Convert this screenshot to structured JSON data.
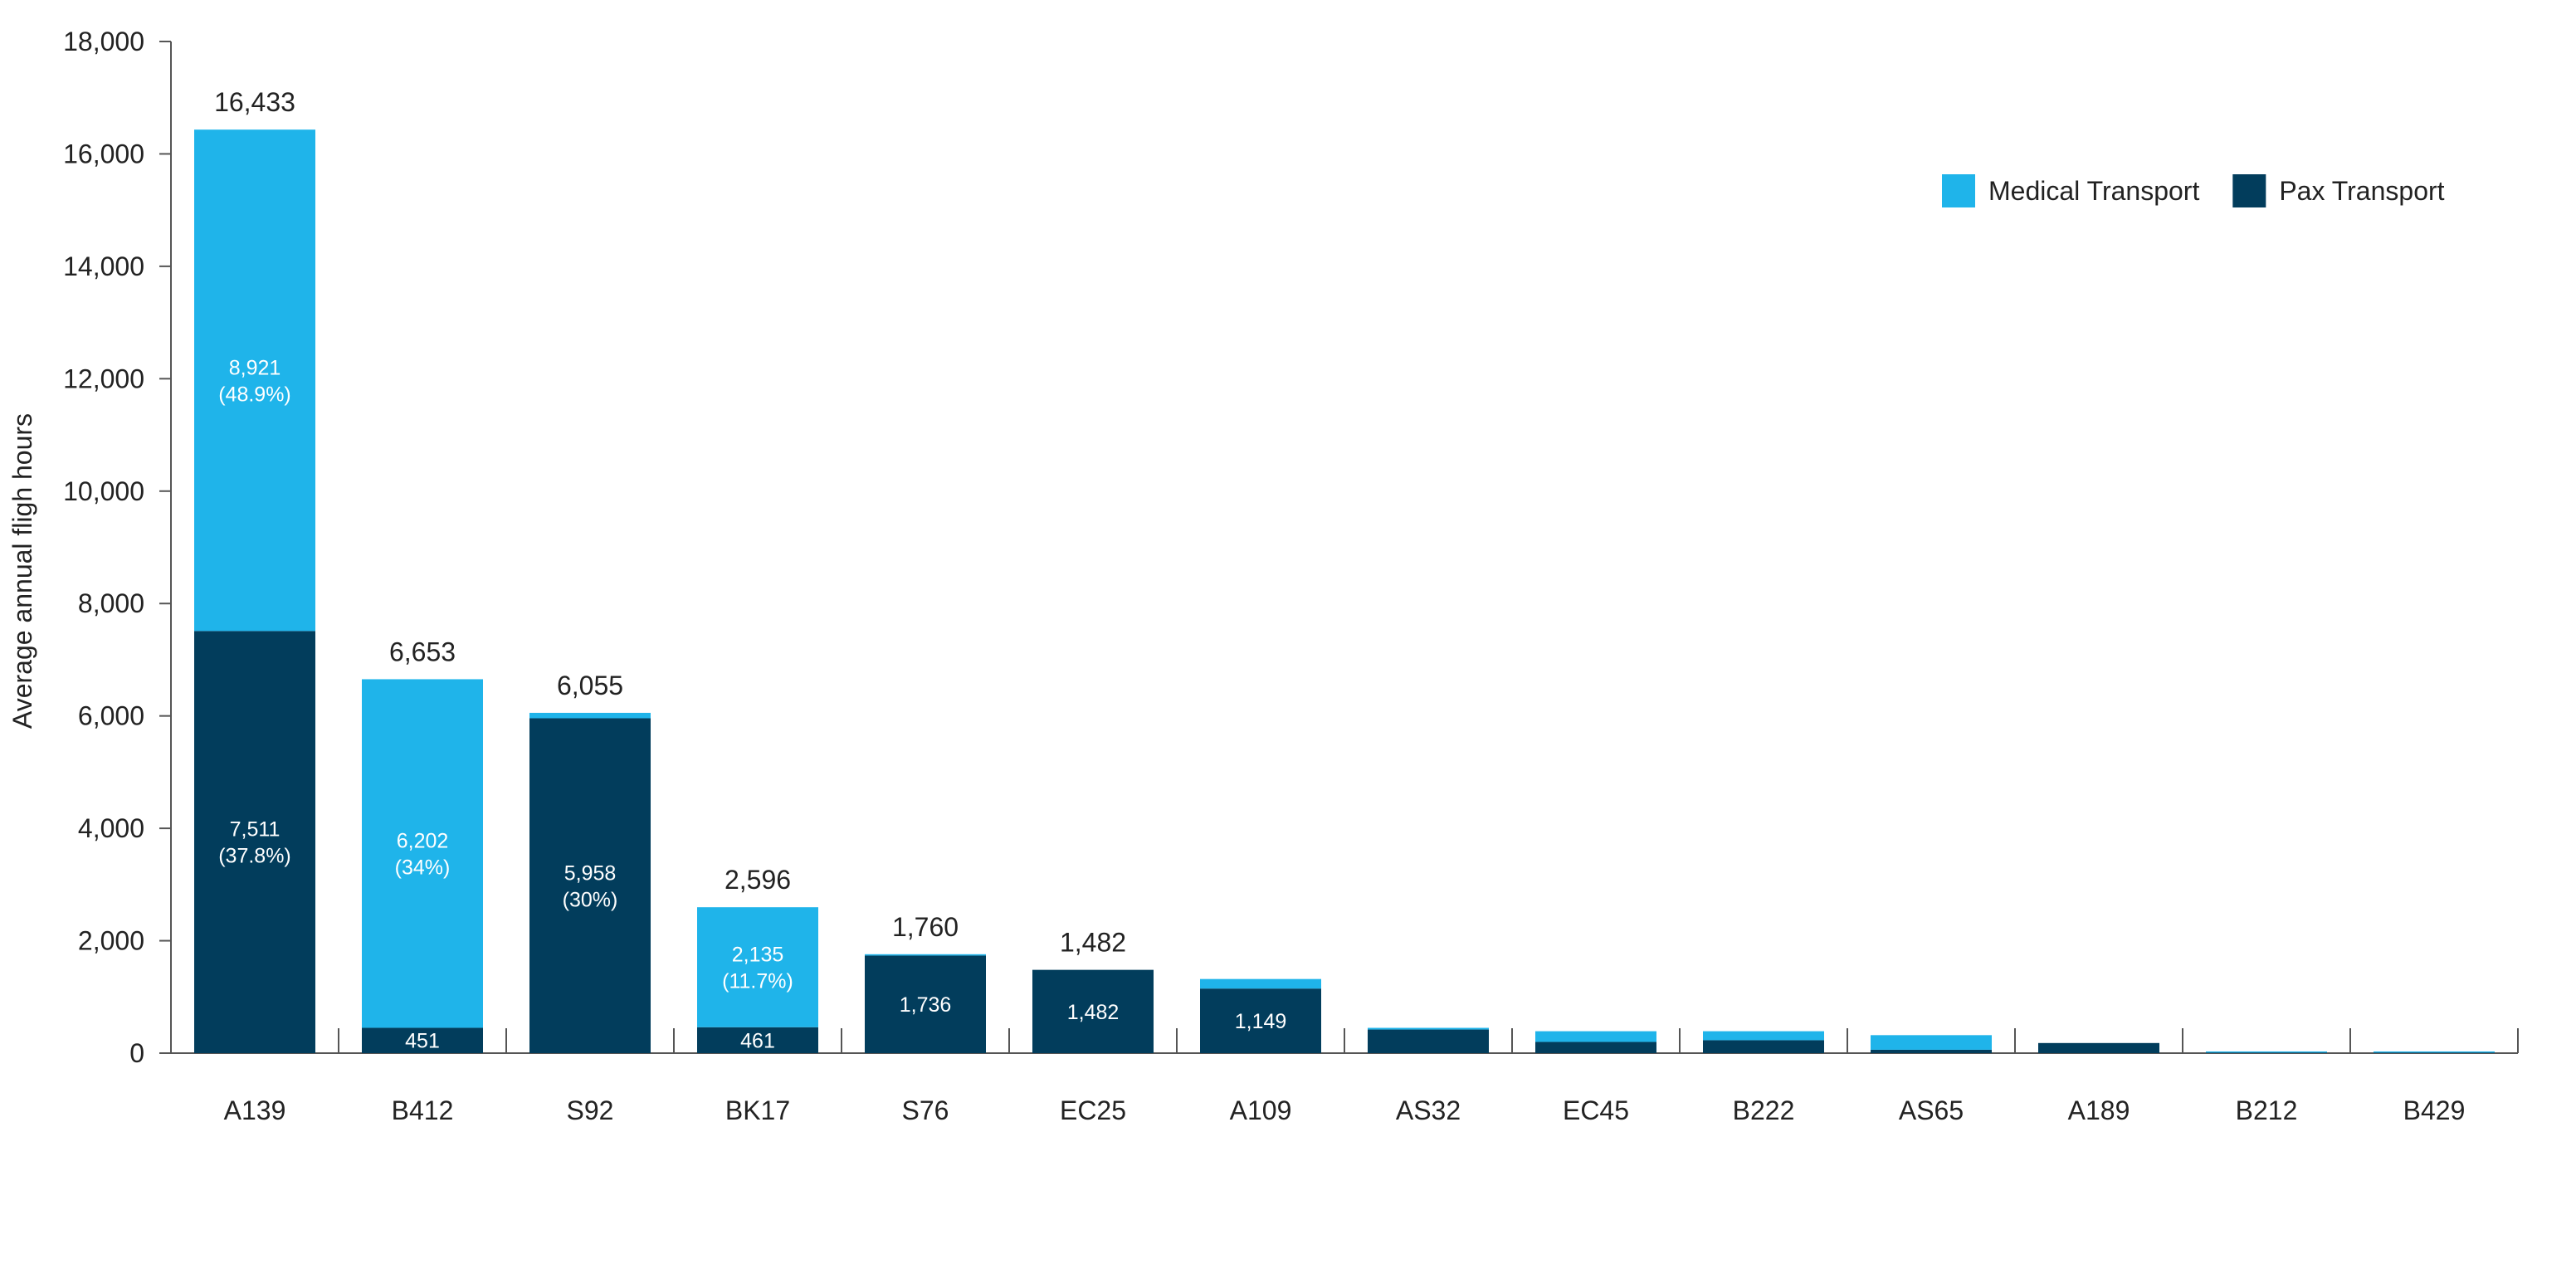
{
  "chart_data": {
    "type": "bar",
    "stacked": true,
    "title": "",
    "xlabel": "",
    "ylabel": "Average annual fligh hours",
    "ylim": [
      0,
      18000
    ],
    "yticks": [
      0,
      2000,
      4000,
      6000,
      8000,
      10000,
      12000,
      14000,
      16000,
      18000
    ],
    "ytick_labels": [
      "0",
      "2,000",
      "4,000",
      "6,000",
      "8,000",
      "10,000",
      "12,000",
      "14,000",
      "16,000",
      "18,000"
    ],
    "grid": false,
    "legend_position": "top-right",
    "categories": [
      "A139",
      "B412",
      "S92",
      "BK17",
      "S76",
      "EC25",
      "A109",
      "AS32",
      "EC45",
      "B222",
      "AS65",
      "A189",
      "B212",
      "B429"
    ],
    "series": [
      {
        "name": "Pax Transport",
        "color": "#023d5c",
        "values": [
          7511,
          451,
          5958,
          461,
          1736,
          1482,
          1149,
          420,
          200,
          230,
          60,
          180,
          10,
          10
        ],
        "labels": [
          [
            "7,511",
            "(37.8%)"
          ],
          [
            "451"
          ],
          [
            "5,958",
            "(30%)"
          ],
          [
            "461"
          ],
          [
            "1,736"
          ],
          [
            "1,482"
          ],
          [
            "1,149"
          ],
          [],
          [],
          [],
          [],
          [],
          [],
          []
        ]
      },
      {
        "name": "Medical Transport",
        "color": "#1fb4ea",
        "values": [
          8921,
          6202,
          97,
          2135,
          24,
          0,
          170,
          30,
          190,
          160,
          260,
          0,
          20,
          20
        ],
        "labels": [
          [
            "8,921",
            "(48.9%)"
          ],
          [
            "6,202",
            "(34%)"
          ],
          [],
          [
            "2,135",
            "(11.7%)"
          ],
          [],
          [],
          [],
          [],
          [],
          [],
          [],
          [],
          [],
          []
        ]
      }
    ],
    "totals": [
      "16,433",
      "6,653",
      "6,055",
      "2,596",
      "1,760",
      "1,482",
      "",
      "",
      "",
      "",
      "",
      "",
      "",
      ""
    ],
    "legend": [
      {
        "name": "Medical Transport",
        "color": "#1fb4ea"
      },
      {
        "name": "Pax Transport",
        "color": "#023d5c"
      }
    ]
  }
}
